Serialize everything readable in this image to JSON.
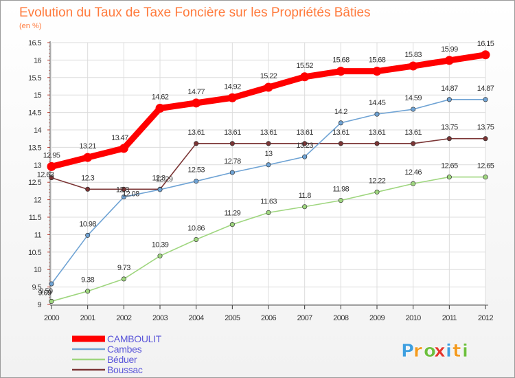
{
  "chart_data": {
    "type": "line",
    "title": "Evolution du Taux de Taxe Foncière sur les Propriétés Bâties",
    "subtitle": "(en %)",
    "x": [
      "2000",
      "2001",
      "2002",
      "2003",
      "2004",
      "2005",
      "2006",
      "2007",
      "2008",
      "2009",
      "2010",
      "2011",
      "2012"
    ],
    "ylim": [
      9,
      16.5
    ],
    "yticks": [
      "9",
      "9.5",
      "10",
      "10.5",
      "11",
      "11.5",
      "12",
      "12.5",
      "13",
      "13.5",
      "14",
      "14.5",
      "15",
      "15.5",
      "16",
      "16.5"
    ],
    "grid": true,
    "legend_position": "bottom-left",
    "series": [
      {
        "name": "CAMBOULIT",
        "color": "#ff0000",
        "values": [
          12.95,
          13.21,
          13.47,
          14.62,
          14.77,
          14.92,
          15.22,
          15.52,
          15.68,
          15.68,
          15.83,
          15.99,
          16.15
        ],
        "labels": [
          "12.95",
          "13.21",
          "13.47",
          "14.62",
          "14.77",
          "14.92",
          "15.22",
          "15.52",
          "15.68",
          "15.68",
          "15.83",
          "15.99",
          "16.15"
        ]
      },
      {
        "name": "Cambes",
        "color": "#6fa3d4",
        "values": [
          9.59,
          10.98,
          12.08,
          12.29,
          12.53,
          12.78,
          13,
          13.23,
          14.2,
          14.45,
          14.59,
          14.87,
          14.87
        ],
        "labels": [
          "9.59",
          "10.98",
          "12.08",
          "12.29",
          "12.53",
          "12.78",
          "13",
          "13.23",
          "14.2",
          "14.45",
          "14.59",
          "14.87",
          "14.87"
        ]
      },
      {
        "name": "Béduer",
        "color": "#9fd67f",
        "values": [
          9.09,
          9.38,
          9.73,
          10.39,
          10.86,
          11.29,
          11.63,
          11.8,
          11.98,
          12.22,
          12.46,
          12.65,
          12.65
        ],
        "labels": [
          "9.09",
          "9.38",
          "9.73",
          "10.39",
          "10.86",
          "11.29",
          "11.63",
          "11.8",
          "11.98",
          "12.22",
          "12.46",
          "12.65",
          "12.65"
        ]
      },
      {
        "name": "Boussac",
        "color": "#7b3535",
        "values": [
          12.63,
          12.3,
          12.3,
          12.3,
          13.61,
          13.61,
          13.61,
          13.61,
          13.61,
          13.61,
          13.61,
          13.75,
          13.75
        ],
        "labels": [
          "12.63",
          "12.3",
          "12.3",
          "12.3",
          "13.61",
          "13.61",
          "13.61",
          "13.61",
          "13.61",
          "13.61",
          "13.61",
          "13.75",
          "13.75"
        ]
      }
    ]
  },
  "logo": {
    "text": "Proxiti",
    "letters": [
      "P",
      "r",
      "o",
      "x",
      "i",
      "t",
      "i"
    ]
  }
}
